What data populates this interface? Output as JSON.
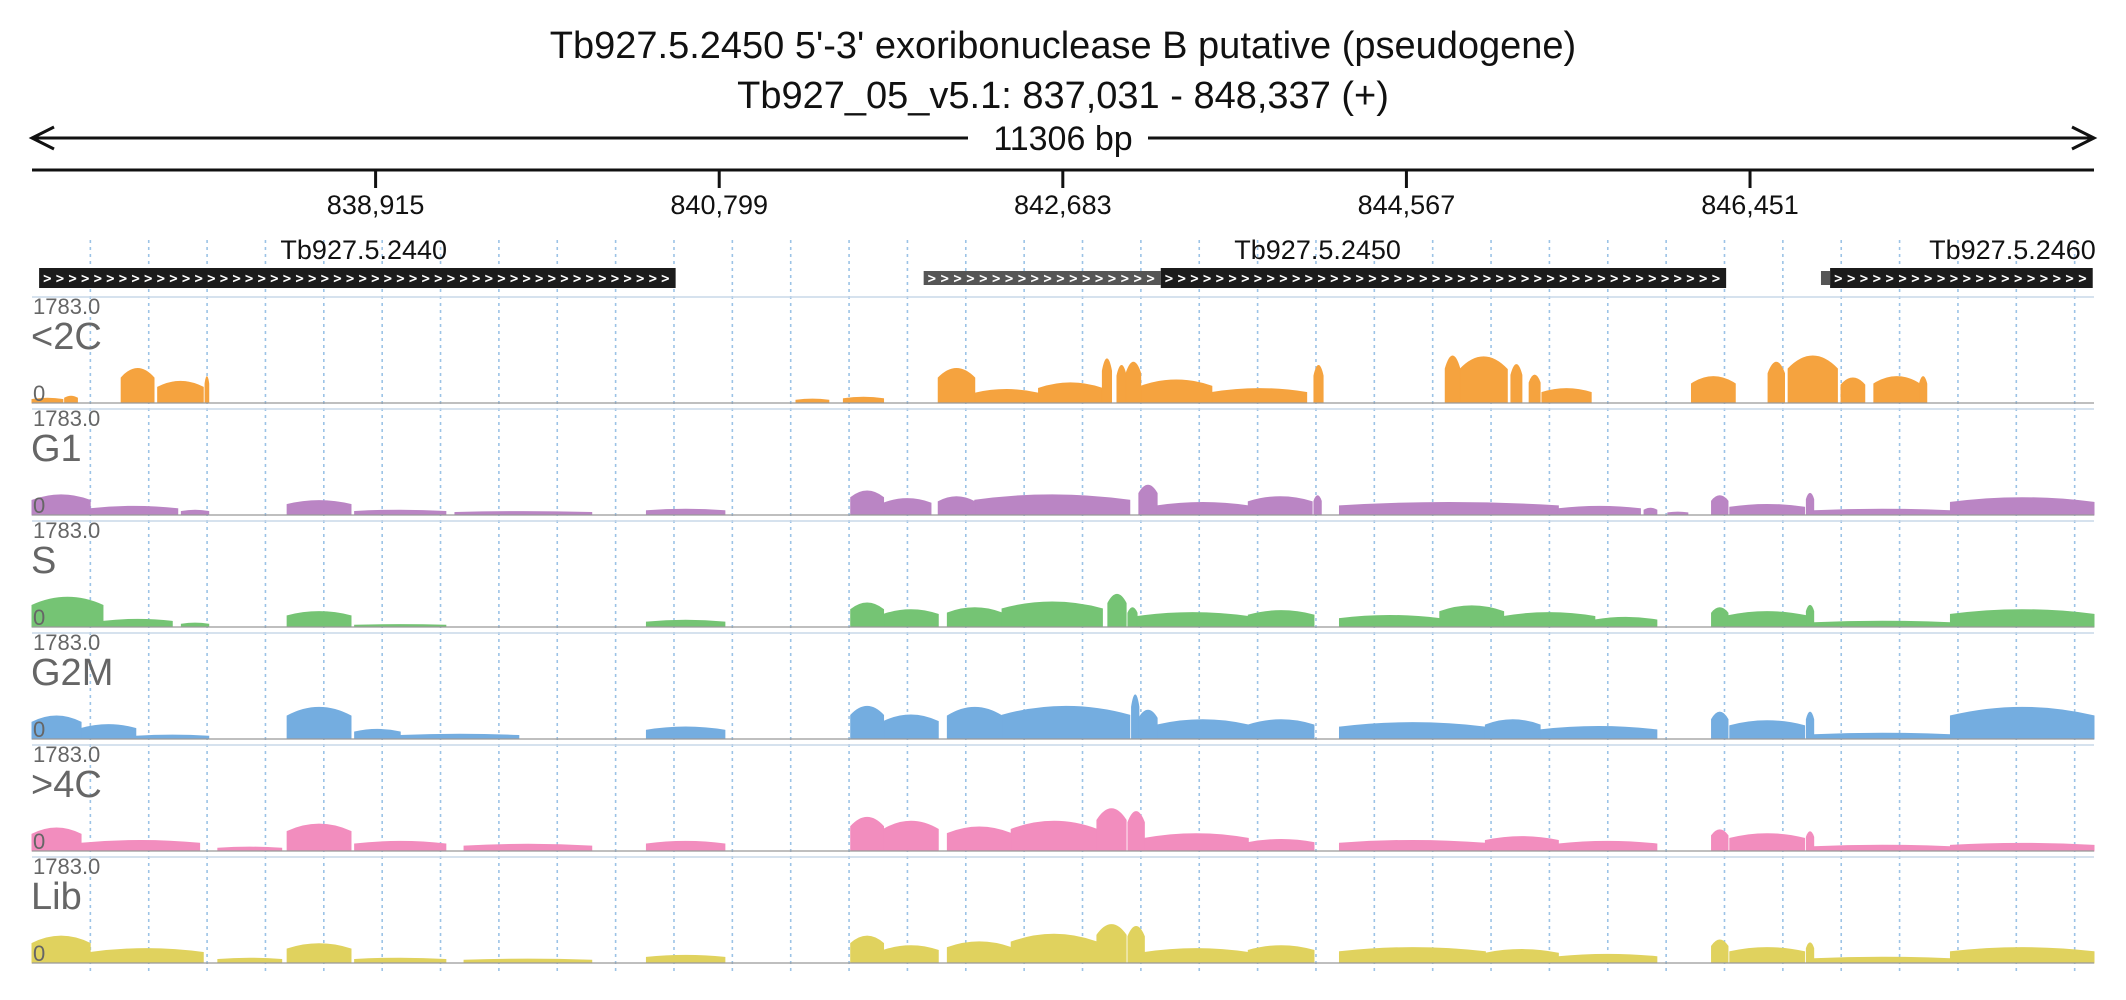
{
  "chart_data": {
    "type": "area",
    "title": "Tb927.5.2450  5'-3' exoribonuclease B  putative (pseudogene)",
    "subtitle": "Tb927_05_v5.1: 837,031 - 848,337 (+)",
    "span_label": "11306 bp",
    "region": [
      837031,
      848337
    ],
    "ticks": [
      {
        "value": 838915,
        "label": "838,915"
      },
      {
        "value": 840799,
        "label": "840,799"
      },
      {
        "value": 842683,
        "label": "842,683"
      },
      {
        "value": 844567,
        "label": "844,567"
      },
      {
        "value": 846451,
        "label": "846,451"
      }
    ],
    "genes": [
      {
        "name": "Tb927.5.2440",
        "start": 837070,
        "end": 840560,
        "utr": null,
        "label_at": 838850
      },
      {
        "name": "Tb927.5.2450",
        "start": 843220,
        "end": 846320,
        "utr": [
          841920,
          843220
        ],
        "label_at": 844080
      },
      {
        "name": "Tb927.5.2460",
        "start": 846890,
        "end": 848330,
        "utr": [
          846840,
          846890
        ],
        "label_at": 847890
      }
    ],
    "grid": true,
    "grid_step_bp": 320,
    "tracks": [
      {
        "name": "<2C",
        "max_label": "1783.0",
        "zero_label": "0",
        "color": "#F5A33F",
        "segments": [
          [
            837031,
            837200,
            0.1
          ],
          [
            837210,
            837280,
            0.14
          ],
          [
            837520,
            837700,
            0.72
          ],
          [
            837720,
            837970,
            0.45
          ],
          [
            837980,
            838000,
            0.55
          ],
          [
            841220,
            841400,
            0.08
          ],
          [
            841480,
            841700,
            0.12
          ],
          [
            842000,
            842200,
            0.72
          ],
          [
            842200,
            842550,
            0.28
          ],
          [
            842550,
            842900,
            0.42
          ],
          [
            842900,
            842950,
            0.92
          ],
          [
            842980,
            843030,
            0.78
          ],
          [
            843030,
            843110,
            0.85
          ],
          [
            843110,
            843500,
            0.48
          ],
          [
            843500,
            844020,
            0.3
          ],
          [
            844060,
            844110,
            0.78
          ],
          [
            844780,
            844860,
            0.98
          ],
          [
            844860,
            845120,
            0.96
          ],
          [
            845140,
            845200,
            0.8
          ],
          [
            845240,
            845300,
            0.58
          ],
          [
            845310,
            845580,
            0.3
          ],
          [
            846130,
            846370,
            0.55
          ],
          [
            846550,
            846640,
            0.85
          ],
          [
            846660,
            846930,
            0.98
          ],
          [
            846950,
            847080,
            0.52
          ],
          [
            847130,
            847380,
            0.55
          ],
          [
            847380,
            847420,
            0.55
          ]
        ]
      },
      {
        "name": "G1",
        "max_label": "1783.0",
        "zero_label": "0",
        "color": "#BA85C4",
        "segments": [
          [
            837031,
            837350,
            0.42
          ],
          [
            837350,
            837830,
            0.18
          ],
          [
            837850,
            838000,
            0.1
          ],
          [
            838430,
            838780,
            0.3
          ],
          [
            838800,
            839300,
            0.1
          ],
          [
            839350,
            840100,
            0.07
          ],
          [
            840400,
            840830,
            0.12
          ],
          [
            841520,
            841700,
            0.5
          ],
          [
            841700,
            841960,
            0.34
          ],
          [
            842000,
            842200,
            0.38
          ],
          [
            842200,
            843050,
            0.42
          ],
          [
            843100,
            843200,
            0.62
          ],
          [
            843200,
            843700,
            0.26
          ],
          [
            843700,
            844050,
            0.38
          ],
          [
            844060,
            844100,
            0.4
          ],
          [
            844200,
            845400,
            0.26
          ],
          [
            845400,
            845850,
            0.18
          ],
          [
            845870,
            845940,
            0.14
          ],
          [
            846000,
            846110,
            0.06
          ],
          [
            846240,
            846330,
            0.4
          ],
          [
            846340,
            846750,
            0.22
          ],
          [
            846760,
            846800,
            0.45
          ],
          [
            846800,
            847550,
            0.12
          ],
          [
            847550,
            848337,
            0.36
          ]
        ]
      },
      {
        "name": "S",
        "max_label": "1783.0",
        "zero_label": "0",
        "color": "#75C474",
        "segments": [
          [
            837031,
            837420,
            0.62
          ],
          [
            837420,
            837800,
            0.16
          ],
          [
            837850,
            838000,
            0.08
          ],
          [
            838430,
            838780,
            0.32
          ],
          [
            838800,
            839300,
            0.05
          ],
          [
            840400,
            840830,
            0.14
          ],
          [
            841520,
            841700,
            0.5
          ],
          [
            841700,
            842000,
            0.36
          ],
          [
            842050,
            842350,
            0.4
          ],
          [
            842350,
            842900,
            0.52
          ],
          [
            842930,
            843030,
            0.68
          ],
          [
            843040,
            843090,
            0.4
          ],
          [
            843090,
            843700,
            0.3
          ],
          [
            843700,
            844060,
            0.34
          ],
          [
            844200,
            844750,
            0.24
          ],
          [
            844750,
            845100,
            0.44
          ],
          [
            845100,
            845600,
            0.3
          ],
          [
            845600,
            845940,
            0.2
          ],
          [
            846240,
            846330,
            0.4
          ],
          [
            846330,
            846760,
            0.32
          ],
          [
            846760,
            846800,
            0.45
          ],
          [
            846800,
            847550,
            0.12
          ],
          [
            847550,
            848337,
            0.36
          ]
        ]
      },
      {
        "name": "G2M",
        "max_label": "1783.0",
        "zero_label": "0",
        "color": "#74ADE0",
        "segments": [
          [
            837031,
            837300,
            0.48
          ],
          [
            837300,
            837600,
            0.3
          ],
          [
            837600,
            838000,
            0.08
          ],
          [
            838430,
            838780,
            0.66
          ],
          [
            838800,
            839050,
            0.2
          ],
          [
            839050,
            839700,
            0.1
          ],
          [
            840400,
            840830,
            0.25
          ],
          [
            841520,
            841700,
            0.68
          ],
          [
            841700,
            842000,
            0.5
          ],
          [
            842050,
            842350,
            0.66
          ],
          [
            842350,
            843050,
            0.68
          ],
          [
            843060,
            843100,
            0.92
          ],
          [
            843100,
            843200,
            0.6
          ],
          [
            843200,
            843700,
            0.4
          ],
          [
            843700,
            844060,
            0.4
          ],
          [
            844200,
            845000,
            0.34
          ],
          [
            845000,
            845300,
            0.4
          ],
          [
            845300,
            845940,
            0.26
          ],
          [
            846240,
            846330,
            0.56
          ],
          [
            846340,
            846750,
            0.38
          ],
          [
            846760,
            846800,
            0.56
          ],
          [
            846800,
            847550,
            0.12
          ],
          [
            847550,
            848337,
            0.66
          ]
        ]
      },
      {
        "name": ">4C",
        "max_label": "1783.0",
        "zero_label": "0",
        "color": "#F28DBE",
        "segments": [
          [
            837031,
            837300,
            0.48
          ],
          [
            837300,
            837950,
            0.22
          ],
          [
            838050,
            838400,
            0.08
          ],
          [
            838430,
            838780,
            0.56
          ],
          [
            838800,
            839300,
            0.2
          ],
          [
            839400,
            840100,
            0.14
          ],
          [
            840400,
            840830,
            0.2
          ],
          [
            841520,
            841700,
            0.7
          ],
          [
            841700,
            842000,
            0.62
          ],
          [
            842050,
            842400,
            0.5
          ],
          [
            842400,
            842870,
            0.62
          ],
          [
            842870,
            843030,
            0.88
          ],
          [
            843040,
            843130,
            0.82
          ],
          [
            843130,
            843700,
            0.36
          ],
          [
            843700,
            844060,
            0.24
          ],
          [
            844200,
            845000,
            0.22
          ],
          [
            845000,
            845400,
            0.3
          ],
          [
            845400,
            845940,
            0.2
          ],
          [
            846240,
            846330,
            0.44
          ],
          [
            846340,
            846750,
            0.36
          ],
          [
            846760,
            846800,
            0.4
          ],
          [
            846800,
            847550,
            0.12
          ],
          [
            847550,
            848337,
            0.16
          ]
        ]
      },
      {
        "name": "Lib",
        "max_label": "1783.0",
        "zero_label": "0",
        "color": "#E0D25E",
        "segments": [
          [
            837031,
            837350,
            0.56
          ],
          [
            837350,
            837970,
            0.3
          ],
          [
            838050,
            838400,
            0.1
          ],
          [
            838430,
            838780,
            0.4
          ],
          [
            838800,
            839300,
            0.1
          ],
          [
            839400,
            840100,
            0.08
          ],
          [
            840400,
            840830,
            0.16
          ],
          [
            841520,
            841700,
            0.56
          ],
          [
            841700,
            842000,
            0.36
          ],
          [
            842050,
            842400,
            0.44
          ],
          [
            842400,
            842870,
            0.6
          ],
          [
            842870,
            843030,
            0.8
          ],
          [
            843040,
            843130,
            0.76
          ],
          [
            843130,
            843700,
            0.3
          ],
          [
            843700,
            844060,
            0.36
          ],
          [
            844200,
            845000,
            0.32
          ],
          [
            845000,
            845400,
            0.28
          ],
          [
            845400,
            845940,
            0.18
          ],
          [
            846240,
            846330,
            0.48
          ],
          [
            846340,
            846750,
            0.32
          ],
          [
            846760,
            846800,
            0.42
          ],
          [
            846800,
            847550,
            0.12
          ],
          [
            847550,
            848337,
            0.32
          ]
        ]
      }
    ]
  }
}
